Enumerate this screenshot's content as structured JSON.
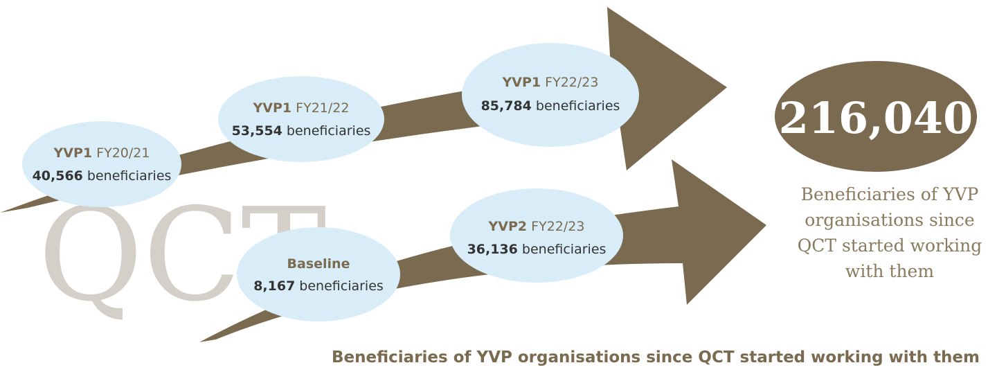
{
  "watermark": "QCT",
  "nodes": [
    {
      "program": "YVP1",
      "period": "FY20/21",
      "count": "40,566",
      "unit": "beneficiaries"
    },
    {
      "program": "YVP1",
      "period": "FY21/22",
      "count": "53,554",
      "unit": "beneficiaries"
    },
    {
      "program": "YVP1",
      "period": "FY22/23",
      "count": "85,784",
      "unit": "beneficiaries"
    },
    {
      "program": "Baseline",
      "count": "8,167",
      "unit": "beneficiaries"
    },
    {
      "program": "YVP2",
      "period": "FY22/23",
      "count": "36,136",
      "unit": "beneficiaries"
    }
  ],
  "total": {
    "value": "216,040",
    "caption": "Beneficiaries of YVP organisations since QCT started working with them"
  },
  "footer": "Beneficiaries of YVP organisations since QCT started working with them"
}
